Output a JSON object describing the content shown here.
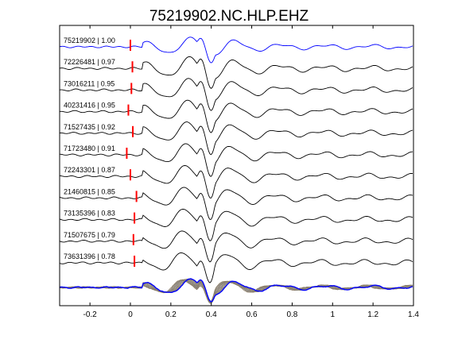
{
  "chart_data": {
    "type": "line",
    "title": "75219902.NC.HLP.EHZ",
    "xlabel": "",
    "ylabel": "",
    "xlim": [
      -0.35,
      1.4
    ],
    "xticks": [
      -0.2,
      0,
      0.2,
      0.4,
      0.6,
      0.8,
      1,
      1.2,
      1.4
    ],
    "xtick_labels": [
      "-0.2",
      "0",
      "0.2",
      "0.4",
      "0.6",
      "0.8",
      "1",
      "1.2",
      "1.4"
    ],
    "grid": false,
    "legend": "none",
    "colors": {
      "master": "#0000ff",
      "trace": "#000000",
      "pick": "#ff0000",
      "stack": "#888888"
    },
    "series": [
      {
        "name": "75219902 | 1.00",
        "pick_time": 0.0,
        "color": "#0000ff"
      },
      {
        "name": "72226481 | 0.97",
        "pick_time": 0.01,
        "color": "#000000"
      },
      {
        "name": "73016211 | 0.95",
        "pick_time": 0.005,
        "color": "#000000"
      },
      {
        "name": "40231416 | 0.95",
        "pick_time": -0.01,
        "color": "#000000"
      },
      {
        "name": "71527435 | 0.92",
        "pick_time": 0.012,
        "color": "#000000"
      },
      {
        "name": "71723480 | 0.91",
        "pick_time": -0.018,
        "color": "#000000"
      },
      {
        "name": "72243301 | 0.87",
        "pick_time": 0.0,
        "color": "#000000"
      },
      {
        "name": "21460815 | 0.85",
        "pick_time": 0.03,
        "color": "#000000"
      },
      {
        "name": "73135396 | 0.83",
        "pick_time": 0.02,
        "color": "#000000"
      },
      {
        "name": "71507675 | 0.79",
        "pick_time": 0.015,
        "color": "#000000"
      },
      {
        "name": "73631396 | 0.78",
        "pick_time": 0.02,
        "color": "#000000"
      }
    ]
  }
}
